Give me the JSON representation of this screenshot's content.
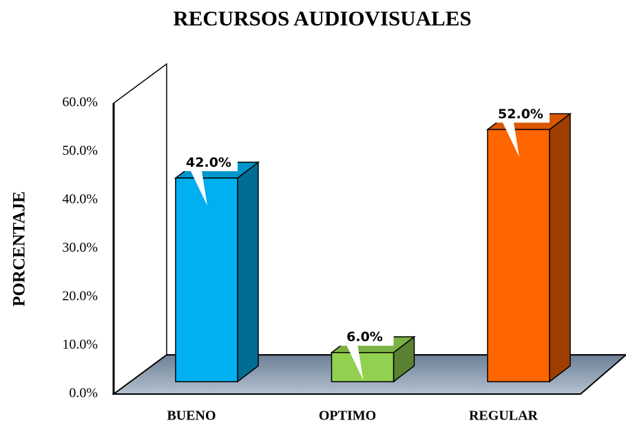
{
  "chart_data": {
    "type": "bar3d",
    "title": "RECURSOS AUDIOVISUALES",
    "y_label": "PORCENTAJE",
    "categories": [
      "BUENO",
      "OPTIMO",
      "REGULAR"
    ],
    "values": [
      42,
      6,
      52
    ],
    "value_labels": [
      "42.0%",
      "6.0%",
      "52.0%"
    ],
    "colors": [
      "#00b0f0",
      "#92d050",
      "#ff6600"
    ],
    "ylim": [
      0,
      60
    ],
    "yticks": [
      {
        "value": 0,
        "label": "0.0%"
      },
      {
        "value": 10,
        "label": "10.0%"
      },
      {
        "value": 20,
        "label": "20.0%"
      },
      {
        "value": 30,
        "label": "30.0%"
      },
      {
        "value": 40,
        "label": "40.0%"
      },
      {
        "value": 50,
        "label": "50.0%"
      },
      {
        "value": 60,
        "label": "60.0%"
      }
    ],
    "grid": false
  }
}
